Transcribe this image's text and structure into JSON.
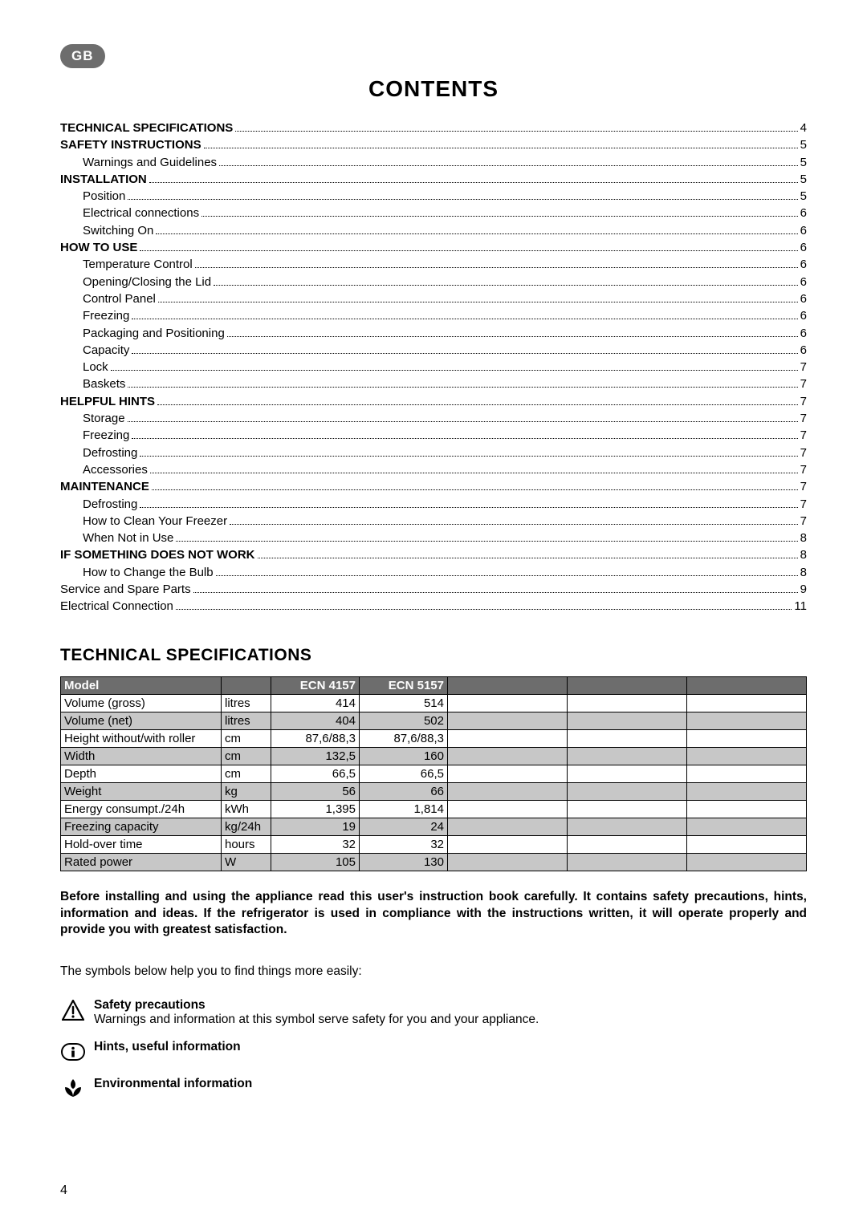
{
  "badge": "GB",
  "title": "CONTENTS",
  "toc": [
    {
      "label": "TECHNICAL SPECIFICATIONS",
      "page": "4",
      "bold": true,
      "indent": 0
    },
    {
      "label": "SAFETY INSTRUCTIONS",
      "page": "5",
      "bold": true,
      "indent": 0
    },
    {
      "label": "Warnings and Guidelines",
      "page": "5",
      "bold": false,
      "indent": 1
    },
    {
      "label": "INSTALLATION",
      "page": "5",
      "bold": true,
      "indent": 0
    },
    {
      "label": "Position",
      "page": "5",
      "bold": false,
      "indent": 1
    },
    {
      "label": "Electrical connections",
      "page": "6",
      "bold": false,
      "indent": 1
    },
    {
      "label": "Switching On",
      "page": "6",
      "bold": false,
      "indent": 1
    },
    {
      "label": "HOW TO USE",
      "page": "6",
      "bold": true,
      "indent": 0
    },
    {
      "label": "Temperature Control",
      "page": "6",
      "bold": false,
      "indent": 1
    },
    {
      "label": "Opening/Closing the Lid",
      "page": "6",
      "bold": false,
      "indent": 1
    },
    {
      "label": "Control Panel",
      "page": "6",
      "bold": false,
      "indent": 1
    },
    {
      "label": "Freezing",
      "page": "6",
      "bold": false,
      "indent": 1
    },
    {
      "label": "Packaging and Positioning",
      "page": "6",
      "bold": false,
      "indent": 1
    },
    {
      "label": "Capacity",
      "page": "6",
      "bold": false,
      "indent": 1
    },
    {
      "label": "Lock",
      "page": "7",
      "bold": false,
      "indent": 1
    },
    {
      "label": "Baskets",
      "page": "7",
      "bold": false,
      "indent": 1
    },
    {
      "label": "HELPFUL HINTS",
      "page": "7",
      "bold": true,
      "indent": 0
    },
    {
      "label": "Storage",
      "page": "7",
      "bold": false,
      "indent": 1
    },
    {
      "label": "Freezing",
      "page": "7",
      "bold": false,
      "indent": 1
    },
    {
      "label": "Defrosting",
      "page": "7",
      "bold": false,
      "indent": 1
    },
    {
      "label": "Accessories",
      "page": "7",
      "bold": false,
      "indent": 1
    },
    {
      "label": "MAINTENANCE",
      "page": "7",
      "bold": true,
      "indent": 0
    },
    {
      "label": "Defrosting",
      "page": "7",
      "bold": false,
      "indent": 1
    },
    {
      "label": "How to Clean Your Freezer",
      "page": "7",
      "bold": false,
      "indent": 1
    },
    {
      "label": "When Not in Use",
      "page": "8",
      "bold": false,
      "indent": 1
    },
    {
      "label": "IF SOMETHING DOES NOT WORK",
      "page": "8",
      "bold": true,
      "indent": 0
    },
    {
      "label": "How to Change the Bulb",
      "page": "8",
      "bold": false,
      "indent": 1
    },
    {
      "label": "Service and Spare Parts",
      "page": "9",
      "bold": false,
      "indent": 0
    },
    {
      "label": "Electrical Connection",
      "page": "11",
      "bold": false,
      "indent": 0
    }
  ],
  "spec_title": "TECHNICAL SPECIFICATIONS",
  "spec_table": {
    "header": {
      "model": "Model",
      "col1": "ECN 4157",
      "col2": "ECN 5157"
    },
    "rows": [
      {
        "label": "Volume (gross)",
        "unit": "litres",
        "v1": "414",
        "v2": "514",
        "alt": false
      },
      {
        "label": "Volume (net)",
        "unit": "litres",
        "v1": "404",
        "v2": "502",
        "alt": true
      },
      {
        "label": "Height without/with roller",
        "unit": "cm",
        "v1": "87,6/88,3",
        "v2": "87,6/88,3",
        "alt": false
      },
      {
        "label": "Width",
        "unit": "cm",
        "v1": "132,5",
        "v2": "160",
        "alt": true
      },
      {
        "label": "Depth",
        "unit": "cm",
        "v1": "66,5",
        "v2": "66,5",
        "alt": false
      },
      {
        "label": "Weight",
        "unit": "kg",
        "v1": "56",
        "v2": "66",
        "alt": true
      },
      {
        "label": "Energy consumpt./24h",
        "unit": "kWh",
        "v1": "1,395",
        "v2": "1,814",
        "alt": false
      },
      {
        "label": "Freezing capacity",
        "unit": "kg/24h",
        "v1": "19",
        "v2": "24",
        "alt": true
      },
      {
        "label": "Hold-over time",
        "unit": "hours",
        "v1": "32",
        "v2": "32",
        "alt": false
      },
      {
        "label": "Rated power",
        "unit": "W",
        "v1": "105",
        "v2": "130",
        "alt": true
      }
    ],
    "colors": {
      "header_bg": "#6d6d6d",
      "header_fg": "#ffffff",
      "alt_bg": "#c7c7c7",
      "border": "#000000"
    }
  },
  "intro": "Before installing and using the appliance read this user's instruction book carefully. It contains safety precautions, hints, information and ideas. If the refrigerator is used in compliance with the instructions written, it will operate properly and provide you with greatest satisfaction.",
  "symbols_lead": "The symbols below help you to find things more easily:",
  "symbols": {
    "safety": {
      "title": "Safety precautions",
      "desc": "Warnings and information at this symbol serve safety for you and your appliance."
    },
    "hints": {
      "title": "Hints, useful information"
    },
    "env": {
      "title": "Environmental information"
    }
  },
  "page_number": "4"
}
